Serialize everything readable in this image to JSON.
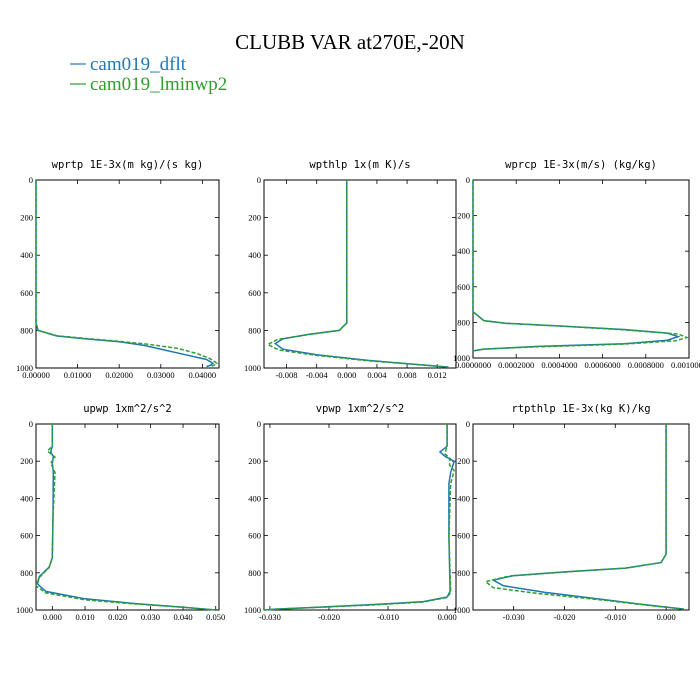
{
  "figure": {
    "title": "CLUBB VAR at270E,-20N"
  },
  "legend": [
    {
      "label": "cam019_dflt",
      "color": "#1f77b4",
      "dash": "solid"
    },
    {
      "label": "cam019_lminwp2",
      "color": "#2ca02c",
      "dash": "dashed"
    }
  ],
  "chart_data": [
    {
      "type": "line",
      "title": "wprtp  1E-3x(m kg)/(s kg)",
      "xlim": [
        0,
        0.044
      ],
      "ylim": [
        1000,
        0
      ],
      "xticks": [
        0,
        0.01,
        0.02,
        0.03,
        0.04
      ],
      "xticklabels": [
        "0.00000",
        "0.01000",
        "0.02000",
        "0.03000",
        "0.04000"
      ],
      "yticks": [
        0,
        200,
        400,
        600,
        800,
        1000
      ],
      "yticklabels": [
        "0",
        "200",
        "400",
        "600",
        "800",
        "1000"
      ],
      "series": [
        {
          "name": "cam019_dflt",
          "x": [
            0,
            0,
            0,
            0.0005,
            0.005,
            0.012,
            0.02,
            0.026,
            0.031,
            0.036,
            0.041,
            0.0425,
            0.042,
            0.041
          ],
          "y": [
            0,
            400,
            760,
            800,
            830,
            845,
            860,
            880,
            905,
            930,
            955,
            975,
            985,
            992
          ]
        },
        {
          "name": "cam019_lminwp2",
          "x": [
            0,
            0,
            0,
            0.0005,
            0.005,
            0.012,
            0.02,
            0.027,
            0.034,
            0.039,
            0.042,
            0.0435,
            0.0428,
            0.042
          ],
          "y": [
            0,
            400,
            760,
            800,
            828,
            843,
            858,
            874,
            895,
            925,
            952,
            975,
            985,
            992
          ]
        }
      ]
    },
    {
      "type": "line",
      "title": "wpthlp  1x(m K)/s",
      "xlim": [
        -0.011,
        0.0145
      ],
      "ylim": [
        1000,
        0
      ],
      "xticks": [
        -0.008,
        -0.004,
        0,
        0.004,
        0.008,
        0.012
      ],
      "xticklabels": [
        "-0.008",
        "-0.004",
        "0.000",
        "0.004",
        "0.008",
        "0.012"
      ],
      "yticks": [
        0,
        200,
        400,
        600,
        800,
        1000
      ],
      "yticklabels": [
        "0",
        "200",
        "400",
        "600",
        "800",
        "1000"
      ],
      "series": [
        {
          "name": "cam019_dflt",
          "x": [
            0,
            0,
            0,
            -0.001,
            -0.005,
            -0.0085,
            -0.0095,
            -0.0085,
            -0.004,
            0.003,
            0.009,
            0.0135
          ],
          "y": [
            0,
            400,
            760,
            800,
            820,
            845,
            870,
            900,
            930,
            960,
            980,
            995
          ]
        },
        {
          "name": "cam019_lminwp2",
          "x": [
            0,
            0,
            0,
            -0.001,
            -0.005,
            -0.0092,
            -0.0105,
            -0.009,
            -0.004,
            0.003,
            0.009,
            0.0135
          ],
          "y": [
            0,
            400,
            760,
            800,
            822,
            848,
            875,
            905,
            933,
            962,
            981,
            995
          ]
        }
      ]
    },
    {
      "type": "line",
      "title": "wprcp  1E-3x(m/s) (kg/kg)",
      "xlim": [
        0,
        0.001
      ],
      "ylim": [
        1000,
        0
      ],
      "xticks": [
        0,
        0.0002,
        0.0004,
        0.0006,
        0.0008,
        0.001
      ],
      "xticklabels": [
        "0.0000000",
        "0.0002000",
        "0.0004000",
        "0.0006000",
        "0.0008000",
        "0.0010000"
      ],
      "yticks": [
        0,
        200,
        400,
        600,
        800,
        1000
      ],
      "yticklabels": [
        "0",
        "200",
        "400",
        "600",
        "800",
        "1000"
      ],
      "series": [
        {
          "name": "cam019_dflt",
          "x": [
            0,
            0,
            5e-05,
            0.00015,
            0.0004,
            0.0007,
            0.0009,
            0.00095,
            0.0009,
            0.0007,
            0.0003,
            5e-05,
            0
          ],
          "y": [
            0,
            740,
            790,
            805,
            820,
            840,
            860,
            880,
            900,
            920,
            935,
            950,
            960
          ]
        },
        {
          "name": "cam019_lminwp2",
          "x": [
            0,
            0,
            5e-05,
            0.00015,
            0.0004,
            0.0007,
            0.00095,
            0.00099,
            0.00094,
            0.0007,
            0.0003,
            5e-05,
            0
          ],
          "y": [
            0,
            740,
            790,
            805,
            820,
            842,
            865,
            885,
            903,
            922,
            937,
            950,
            960
          ]
        }
      ]
    },
    {
      "type": "line",
      "title": "upwp  1xm^2/s^2",
      "xlim": [
        -0.005,
        0.051
      ],
      "ylim": [
        1000,
        0
      ],
      "xticks": [
        0,
        0.01,
        0.02,
        0.03,
        0.04,
        0.05
      ],
      "xticklabels": [
        "0.000",
        "0.010",
        "0.020",
        "0.030",
        "0.040",
        "0.050"
      ],
      "yticks": [
        0,
        200,
        400,
        600,
        800,
        1000
      ],
      "yticklabels": [
        "0",
        "200",
        "400",
        "600",
        "800",
        "1000"
      ],
      "series": [
        {
          "name": "cam019_dflt",
          "x": [
            0,
            0,
            -0.0005,
            0.0003,
            0,
            0.0003,
            0.0002,
            0,
            -0.001,
            -0.004,
            -0.0045,
            -0.002,
            0.01,
            0.025,
            0.04,
            0.05
          ],
          "y": [
            0,
            120,
            150,
            175,
            210,
            260,
            500,
            720,
            770,
            820,
            860,
            900,
            940,
            965,
            985,
            1000
          ]
        },
        {
          "name": "cam019_lminwp2",
          "x": [
            0,
            0,
            -0.0015,
            0.0008,
            -0.0005,
            0.0008,
            0.0002,
            0,
            -0.001,
            -0.004,
            -0.005,
            -0.002,
            0.01,
            0.025,
            0.04,
            0.05
          ],
          "y": [
            0,
            120,
            145,
            178,
            210,
            260,
            500,
            720,
            772,
            825,
            870,
            908,
            945,
            967,
            985,
            1000
          ]
        }
      ]
    },
    {
      "type": "line",
      "title": "vpwp  1xm^2/s^2",
      "xlim": [
        -0.031,
        0.0015
      ],
      "ylim": [
        1000,
        0
      ],
      "xticks": [
        -0.03,
        -0.02,
        -0.01,
        0
      ],
      "xticklabels": [
        "-0.030",
        "-0.020",
        "-0.010",
        "0.000"
      ],
      "yticks": [
        0,
        200,
        400,
        600,
        800,
        1000
      ],
      "yticklabels": [
        "0",
        "200",
        "400",
        "600",
        "800",
        "1000"
      ],
      "series": [
        {
          "name": "cam019_dflt",
          "x": [
            0,
            0,
            -0.0012,
            -0.0003,
            0.0012,
            0.0006,
            0.0003,
            0.0003,
            0.0005,
            0,
            -0.004,
            -0.012,
            -0.022,
            -0.029,
            -0.031
          ],
          "y": [
            0,
            120,
            150,
            175,
            200,
            260,
            320,
            600,
            900,
            930,
            955,
            970,
            985,
            995,
            1000
          ]
        },
        {
          "name": "cam019_lminwp2",
          "x": [
            0,
            0,
            -0.0004,
            0.0005,
            0.0004,
            0.0012,
            0.0006,
            0.0003,
            0.0006,
            0,
            -0.004,
            -0.012,
            -0.022,
            -0.029,
            -0.031
          ],
          "y": [
            0,
            120,
            160,
            185,
            220,
            250,
            320,
            600,
            905,
            933,
            957,
            972,
            986,
            995,
            1000
          ]
        }
      ]
    },
    {
      "type": "line",
      "title": "rtpthlp  1E-3x(kg K)/kg",
      "xlim": [
        -0.038,
        0.0045
      ],
      "ylim": [
        1000,
        0
      ],
      "xticks": [
        -0.03,
        -0.02,
        -0.01,
        0
      ],
      "xticklabels": [
        "-0.030",
        "-0.020",
        "-0.010",
        "0.000"
      ],
      "yticks": [
        0,
        200,
        400,
        600,
        800,
        1000
      ],
      "yticklabels": [
        "0",
        "200",
        "400",
        "600",
        "800",
        "1000"
      ],
      "series": [
        {
          "name": "cam019_dflt",
          "x": [
            0,
            0,
            -0.001,
            -0.008,
            -0.02,
            -0.03,
            -0.034,
            -0.032,
            -0.024,
            -0.012,
            -0.003,
            0.0035
          ],
          "y": [
            0,
            700,
            745,
            775,
            795,
            815,
            840,
            870,
            905,
            945,
            975,
            995
          ]
        },
        {
          "name": "cam019_lminwp2",
          "x": [
            0,
            0,
            -0.001,
            -0.008,
            -0.02,
            -0.031,
            -0.0355,
            -0.034,
            -0.025,
            -0.012,
            -0.003,
            0.0035
          ],
          "y": [
            0,
            700,
            745,
            775,
            796,
            818,
            848,
            880,
            912,
            948,
            977,
            995
          ]
        }
      ]
    }
  ]
}
